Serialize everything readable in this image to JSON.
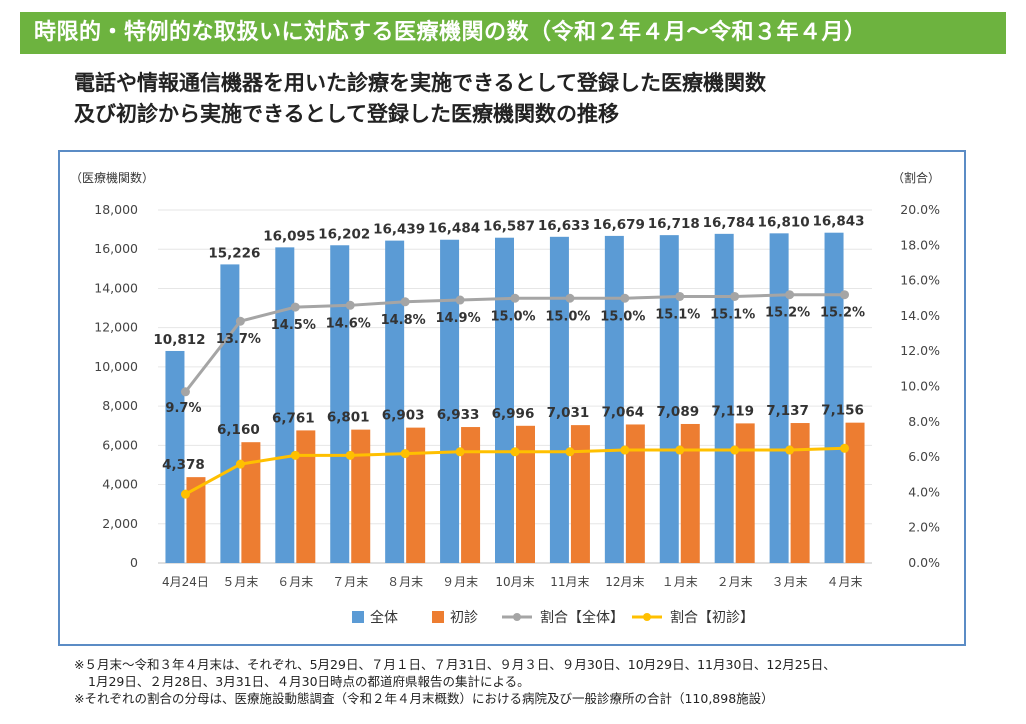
{
  "banner": {
    "title": "時限的・特例的な取扱いに対応する医療機関の数（令和２年４月〜令和３年４月）"
  },
  "subtitle": {
    "line1": "電話や情報通信機器を用いた診療を実施できるとして登録した医療機関数",
    "line2": "及び初診から実施できるとして登録した医療機関数の推移"
  },
  "chart_data": {
    "type": "bar",
    "title": "",
    "ylabel": "（医療機関数）",
    "y2label": "（割合）",
    "categories": [
      "4月24日",
      "５月末",
      "６月末",
      "７月末",
      "８月末",
      "９月末",
      "10月末",
      "11月末",
      "12月末",
      "１月末",
      "２月末",
      "３月末",
      "４月末"
    ],
    "ylim": [
      0,
      18000
    ],
    "yticks": [
      "0",
      "2,000",
      "4,000",
      "6,000",
      "8,000",
      "10,000",
      "12,000",
      "14,000",
      "16,000",
      "18,000"
    ],
    "y2lim": [
      0,
      20
    ],
    "y2ticks": [
      "0.0%",
      "2.0%",
      "4.0%",
      "6.0%",
      "8.0%",
      "10.0%",
      "12.0%",
      "14.0%",
      "16.0%",
      "18.0%",
      "20.0%"
    ],
    "series": [
      {
        "name": "全体",
        "kind": "bar",
        "color": "#5b9bd5",
        "values": [
          10812,
          15226,
          16095,
          16202,
          16439,
          16484,
          16587,
          16633,
          16679,
          16718,
          16784,
          16810,
          16843
        ],
        "labels": [
          "10,812",
          "15,226",
          "16,095",
          "16,202",
          "16,439",
          "16,484",
          "16,587",
          "16,633",
          "16,679",
          "16,718",
          "16,784",
          "16,810",
          "16,843"
        ]
      },
      {
        "name": "初診",
        "kind": "bar",
        "color": "#ed7d31",
        "values": [
          4378,
          6160,
          6761,
          6801,
          6903,
          6933,
          6996,
          7031,
          7064,
          7089,
          7119,
          7137,
          7156
        ],
        "labels": [
          "4,378",
          "6,160",
          "6,761",
          "6,801",
          "6,903",
          "6,933",
          "6,996",
          "7,031",
          "7,064",
          "7,089",
          "7,119",
          "7,137",
          "7,156"
        ]
      },
      {
        "name": "割合【全体】",
        "kind": "line",
        "axis": "right",
        "color": "#a5a5a5",
        "values": [
          9.7,
          13.7,
          14.5,
          14.6,
          14.8,
          14.9,
          15.0,
          15.0,
          15.0,
          15.1,
          15.1,
          15.2,
          15.2
        ],
        "labels": [
          "9.7%",
          "13.7%",
          "14.5%",
          "14.6%",
          "14.8%",
          "14.9%",
          "15.0%",
          "15.0%",
          "15.0%",
          "15.1%",
          "15.1%",
          "15.2%",
          "15.2%"
        ]
      },
      {
        "name": "割合【初診】",
        "kind": "line",
        "axis": "right",
        "color": "#ffc000",
        "values": [
          3.9,
          5.6,
          6.1,
          6.1,
          6.2,
          6.3,
          6.3,
          6.3,
          6.4,
          6.4,
          6.4,
          6.4,
          6.5
        ]
      }
    ],
    "legend": {
      "position": "bottom",
      "items": [
        "全体",
        "初診",
        "割合【全体】",
        "割合【初診】"
      ]
    }
  },
  "notes": {
    "line1": "※５月末〜令和３年４月末は、それぞれ、5月29日、７月１日、７月31日、９月３日、９月30日、10月29日、11月30日、12月25日、",
    "line2": "1月29日、２月28日、3月31日、４月30日時点の都道府県報告の集計による。",
    "line3": "※それぞれの割合の分母は、医療施設動態調査（令和２年４月末概数）における病院及び一般診療所の合計（110,898施設）"
  }
}
